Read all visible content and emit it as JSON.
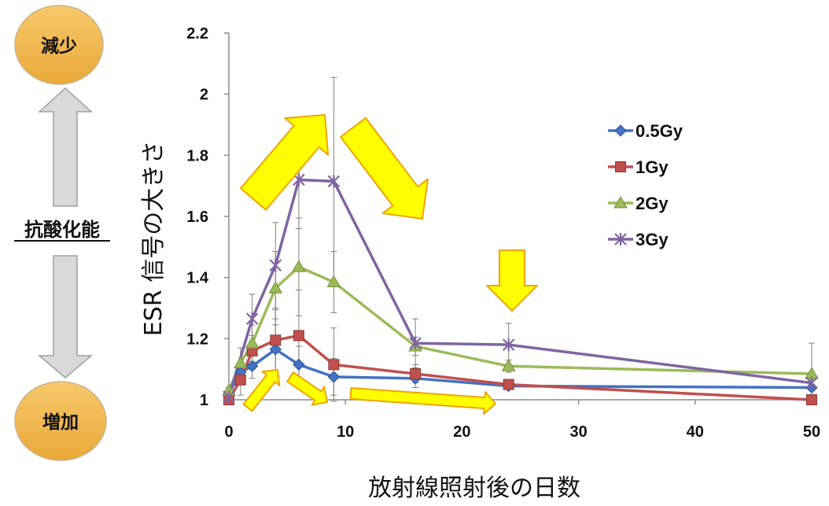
{
  "sidebar": {
    "top_label": "減少",
    "middle_label": "抗酸化能",
    "bottom_label": "増加",
    "circle_color": "#f2b84b",
    "arrow_color": "#d9d9d9"
  },
  "chart_data": {
    "type": "line",
    "title": "",
    "xlabel": "放射線照射後の日数",
    "ylabel": "ESR 信号の大きさ",
    "xlim": [
      0,
      50
    ],
    "ylim": [
      1,
      2.2
    ],
    "x_ticks": [
      "0",
      "10",
      "20",
      "30",
      "40",
      "50"
    ],
    "y_ticks": [
      "1",
      "1.2",
      "1.4",
      "1.6",
      "1.8",
      "2",
      "2.2"
    ],
    "grid": false,
    "legend_position": "right",
    "series": [
      {
        "name": "0.5Gy",
        "color": "#4472c4",
        "marker": "diamond",
        "x": [
          0,
          1,
          2,
          4,
          6,
          9,
          16,
          24,
          50
        ],
        "y": [
          1.02,
          1.09,
          1.11,
          1.165,
          1.115,
          1.075,
          1.07,
          1.045,
          1.04
        ],
        "err": [
          0,
          0.03,
          0.04,
          0.1,
          0.06,
          0.06,
          0.03,
          0.01,
          0.01
        ]
      },
      {
        "name": "1Gy",
        "color": "#c0504d",
        "marker": "square",
        "x": [
          0,
          1,
          2,
          4,
          6,
          9,
          16,
          24,
          50
        ],
        "y": [
          1.0,
          1.065,
          1.16,
          1.195,
          1.21,
          1.115,
          1.085,
          1.05,
          1.0
        ],
        "err": [
          0,
          0.05,
          0.05,
          0.1,
          0.15,
          0.12,
          0.03,
          0.01,
          0.01
        ]
      },
      {
        "name": "2Gy",
        "color": "#9bbb59",
        "marker": "triangle",
        "x": [
          0,
          1,
          2,
          4,
          6,
          9,
          16,
          24,
          50
        ],
        "y": [
          1.03,
          1.12,
          1.185,
          1.365,
          1.435,
          1.385,
          1.175,
          1.11,
          1.085
        ],
        "err": [
          0.01,
          0.05,
          0.06,
          0.12,
          0.16,
          0.1,
          0.03,
          0.02,
          0.1
        ]
      },
      {
        "name": "3Gy",
        "color": "#8064a2",
        "marker": "x",
        "x": [
          0,
          2,
          4,
          6,
          9,
          16,
          24,
          50
        ],
        "y": [
          1.01,
          1.265,
          1.44,
          1.72,
          1.715,
          1.185,
          1.18,
          1.055
        ],
        "err": [
          0.02,
          0.08,
          0.14,
          0.16,
          0.34,
          0.08,
          0.07,
          0.01
        ]
      }
    ],
    "arrow_color": "#ffff00",
    "arrow_outline": "#f0a400"
  }
}
